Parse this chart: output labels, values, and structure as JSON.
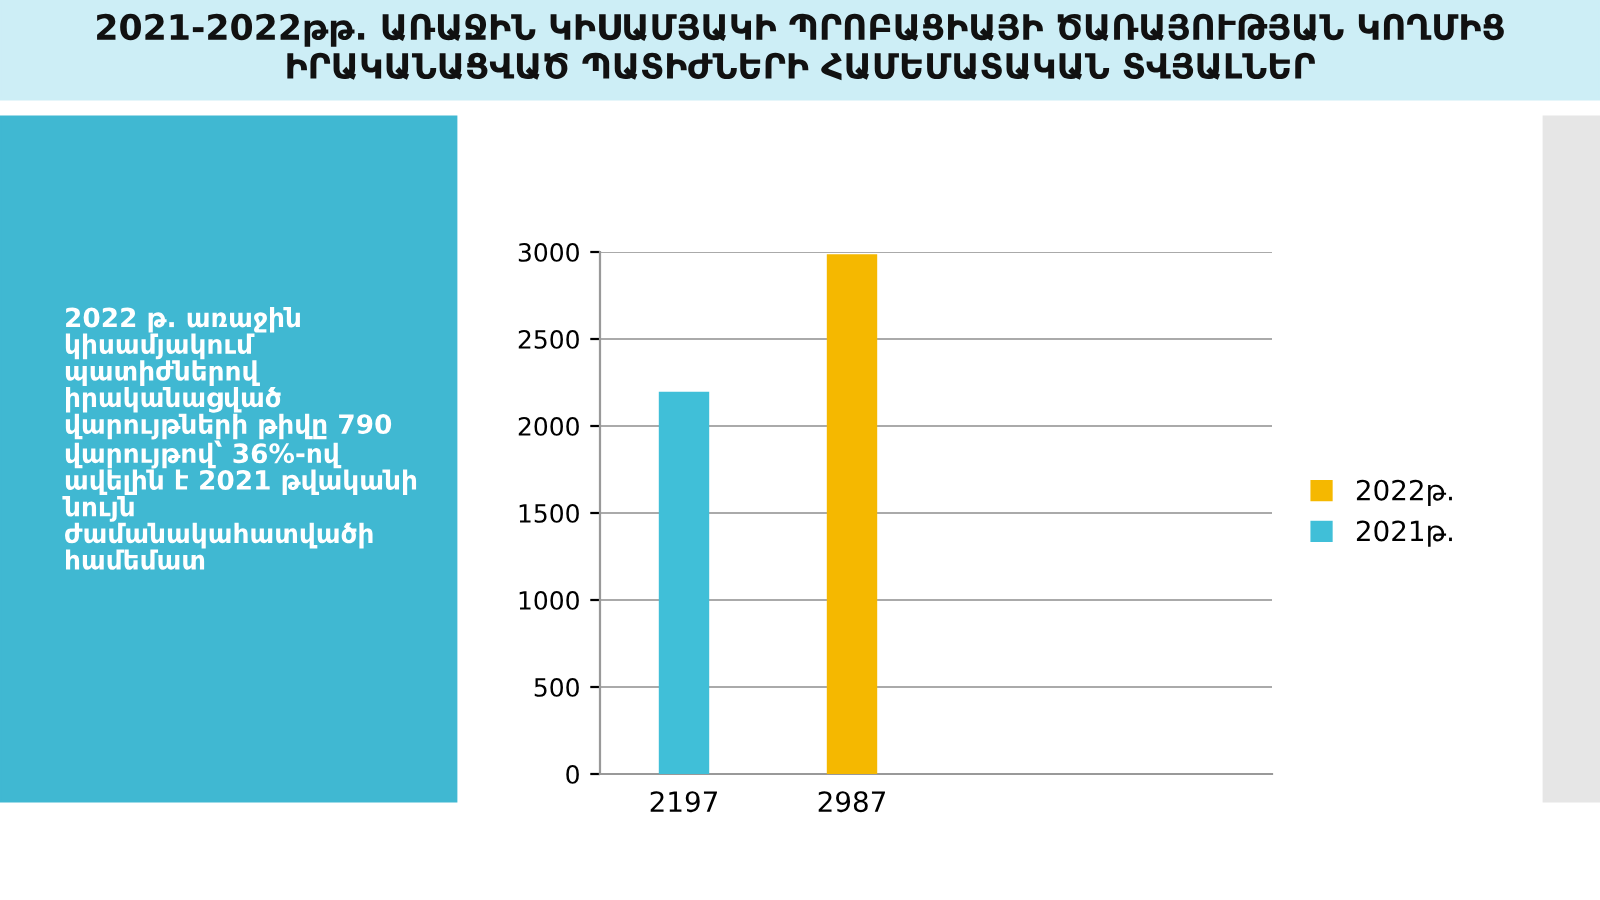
{
  "chart_data": {
    "type": "bar",
    "title": "2021-2022թթ. ԱՌԱՋԻՆ ԿԻՍԱՄՅԱԿԻ ՊՐՈԲԱՑԻԱՅԻ ԾԱՌԱՅՈՒԹՅԱՆ ԿՈՂՄԻՑ\nԻՐԱԿԱՆԱՑՎԱԾ ՊԱՏԻԺՆԵՐԻ ՀԱՄԵՄԱՏԱԿԱՆ ՏՎՅԱԼՆԵՐ",
    "annotations": [
      "2022 թ. առաջին\nկիսամյակում\nպատիժներով\nիրականացված\nվարույթների թիվը 790\nվարույթով՝ 36%-ով\nավելին է 2021 թվականի\nնույն\nժամանակահատվածի\nհամեմատ"
    ],
    "categories": [
      null,
      null,
      null,
      null
    ],
    "data_labels": true,
    "series": [
      {
        "name": "2022թ.",
        "color": "#f5b800",
        "values": [
          null,
          2987,
          null,
          null
        ]
      },
      {
        "name": "2021թ.",
        "color": "#40bfd8",
        "values": [
          2197,
          null,
          null,
          null
        ]
      }
    ],
    "ylim": [
      0,
      3000
    ],
    "yticks": [
      0,
      500,
      1000,
      1500,
      2000,
      2500,
      3000
    ],
    "grid": "y",
    "legend": "right"
  }
}
